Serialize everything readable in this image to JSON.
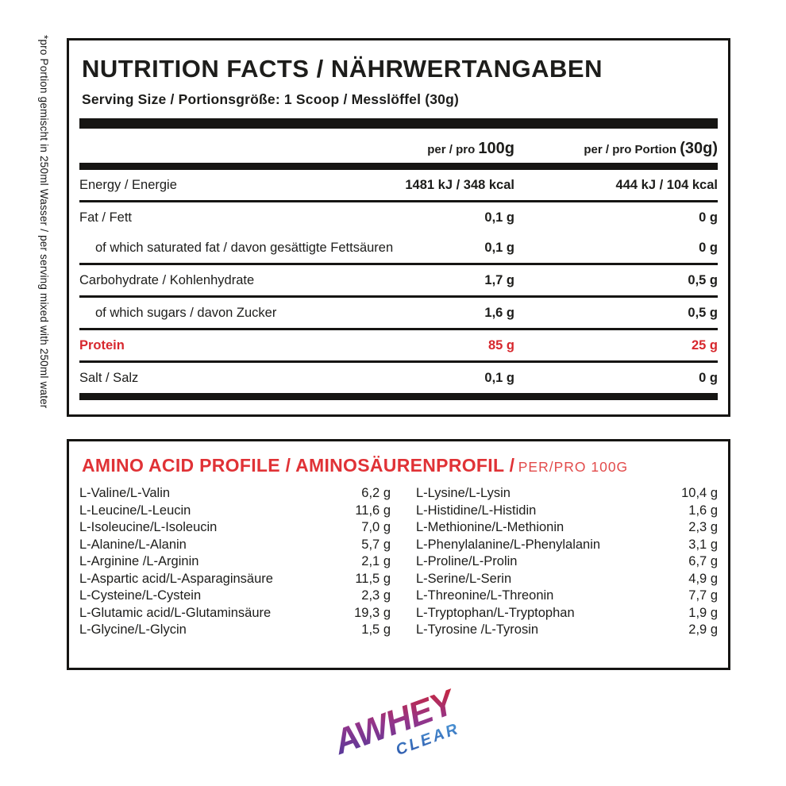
{
  "side_note": "*pro Portion gemischt in 250ml Wasser / per serving mixed with 250ml water",
  "nutrition_panel": {
    "title": "NUTRITION FACTS / NÄHRWERTANGABEN",
    "serving_size": "Serving Size / Portionsgröße: 1 Scoop / Messlöffel (30g)",
    "col_per100_prefix": "per / pro",
    "col_per100_em": "100g",
    "col_portion_prefix": "per / pro Portion",
    "col_portion_em": "(30g)",
    "protein_color": "#d7282e",
    "rows": [
      {
        "label": "Energy / Energie",
        "per_100g": "1481 kJ / 348 kcal",
        "per_portion": "444 kJ / 104 kcal"
      },
      {
        "label": "Fat / Fett",
        "per_100g": "0,1 g",
        "per_portion": "0 g"
      },
      {
        "label": "of which saturated fat / davon gesättigte Fettsäuren",
        "per_100g": "0,1 g",
        "per_portion": "0 g"
      },
      {
        "label": "Carbohydrate / Kohlenhydrate",
        "per_100g": "1,7 g",
        "per_portion": "0,5 g"
      },
      {
        "label": "of which sugars / davon Zucker",
        "per_100g": "1,6 g",
        "per_portion": "0,5 g"
      },
      {
        "label": "Protein",
        "per_100g": "85 g",
        "per_portion": "25 g"
      },
      {
        "label": "Salt / Salz",
        "per_100g": "0,1 g",
        "per_portion": "0 g"
      }
    ]
  },
  "amino_panel": {
    "title": "AMINO ACID PROFILE / AMINOSÄURENPROFIL /",
    "subtitle": "PER/PRO 100G",
    "accent_color": "#e03236",
    "left": [
      {
        "name": "L-Valine/L-Valin",
        "value": "6,2 g"
      },
      {
        "name": "L-Leucine/L-Leucin",
        "value": "11,6 g"
      },
      {
        "name": "L-Isoleucine/L-Isoleucin",
        "value": "7,0 g"
      },
      {
        "name": "L-Alanine/L-Alanin",
        "value": "5,7 g"
      },
      {
        "name": "L-Arginine /L-Arginin",
        "value": "2,1 g"
      },
      {
        "name": "L-Aspartic acid/L-Asparaginsäure",
        "value": "11,5 g"
      },
      {
        "name": "L-Cysteine/L-Cystein",
        "value": "2,3 g"
      },
      {
        "name": "L-Glutamic acid/L-Glutaminsäure",
        "value": "19,3 g"
      },
      {
        "name": "L-Glycine/L-Glycin",
        "value": "1,5 g"
      }
    ],
    "right": [
      {
        "name": "L-Lysine/L-Lysin",
        "value": "10,4 g"
      },
      {
        "name": "L-Histidine/L-Histidin",
        "value": "1,6 g"
      },
      {
        "name": "L-Methionine/L-Methionin",
        "value": "2,3 g"
      },
      {
        "name": "L-Phenylalanine/L-Phenylalanin",
        "value": "3,1 g"
      },
      {
        "name": "L-Proline/L-Prolin",
        "value": "6,7 g"
      },
      {
        "name": "L-Serine/L-Serin",
        "value": "4,9 g"
      },
      {
        "name": "L-Threonine/L-Threonin",
        "value": "7,7 g"
      },
      {
        "name": "L-Tryptophan/L-Tryptophan",
        "value": "1,9 g"
      },
      {
        "name": "L-Tyrosine /L-Tyrosin",
        "value": "2,9 g"
      }
    ]
  },
  "logo": {
    "word": "AWHEY",
    "subword": "CLEAR",
    "gradient_main": {
      "start": "#4a3a9e",
      "mid": "#93358b",
      "end": "#d2232e"
    },
    "gradient_sub": {
      "start": "#2a52a8",
      "end": "#4e9ad8"
    }
  }
}
